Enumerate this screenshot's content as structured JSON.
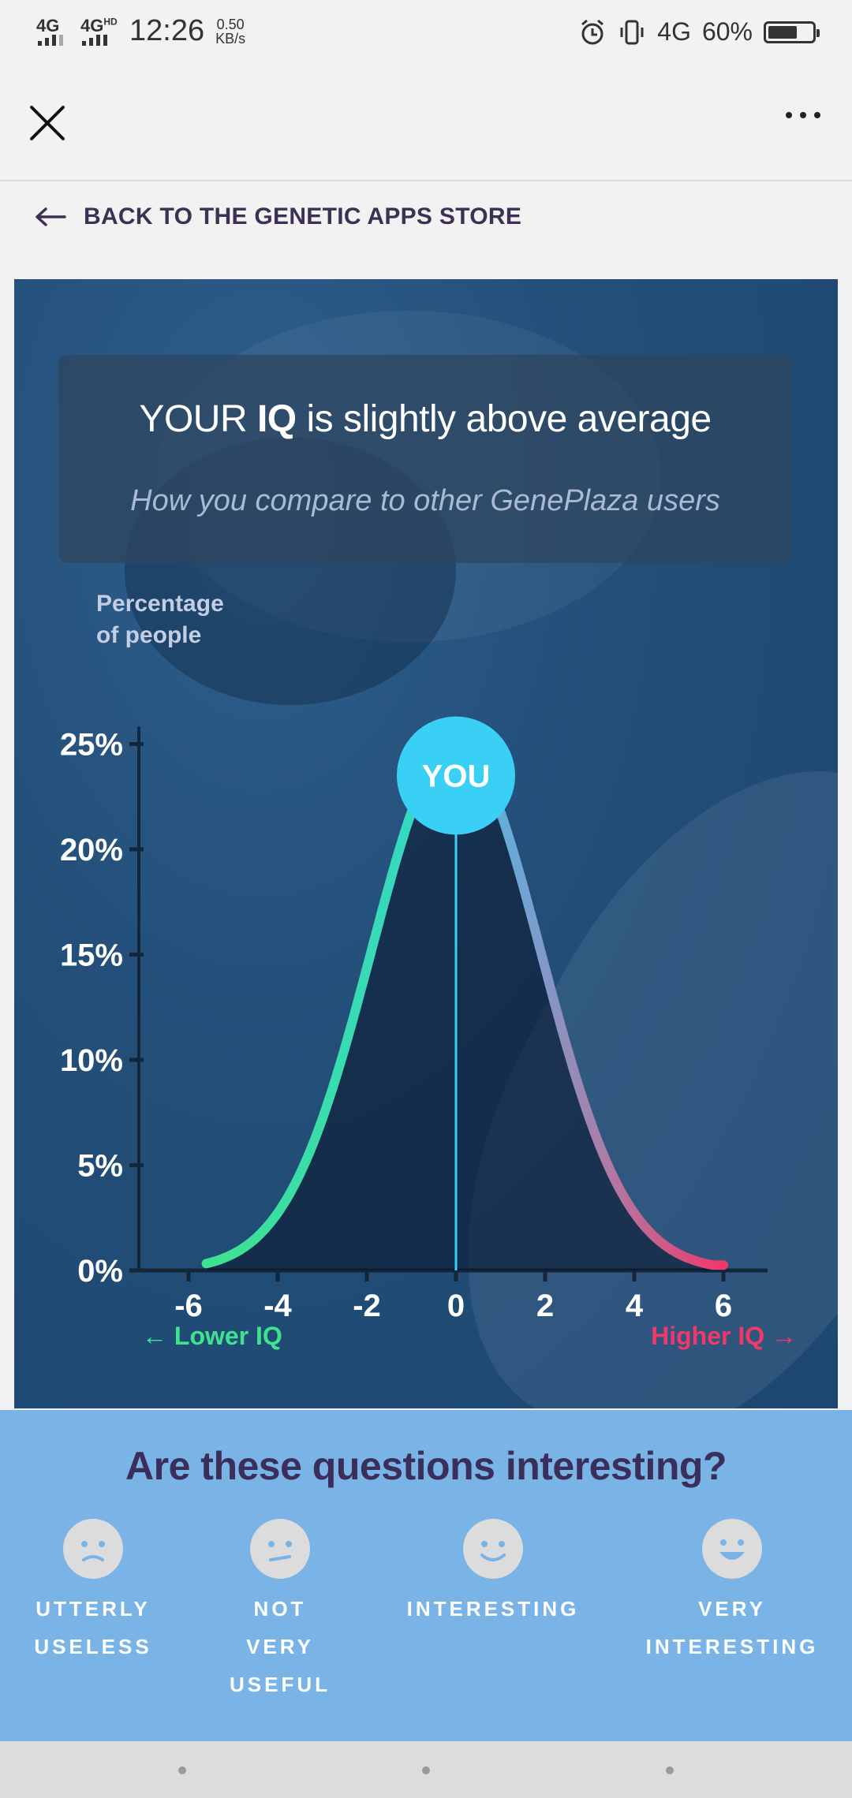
{
  "status_bar": {
    "signal1": "4G",
    "signal2": "4G",
    "signal2_sup": "HD",
    "time": "12:26",
    "speed_value": "0.50",
    "speed_unit": "KB/s",
    "network": "4G",
    "battery": "60%"
  },
  "app_bar": {
    "close_icon": "close-icon",
    "more_icon": "more-dots-icon"
  },
  "back_link": {
    "label": "BACK TO THE GENETIC APPS STORE"
  },
  "result": {
    "title_prefix": "YOUR ",
    "title_bold": "IQ",
    "title_suffix": " is slightly above average",
    "subtitle": "How you compare to other GenePlaza users"
  },
  "chart_data": {
    "type": "area",
    "ylabel_line1": "Percentage",
    "ylabel_line2": "of people",
    "ytick_labels": [
      "25%",
      "20%",
      "15%",
      "10%",
      "5%",
      "0%"
    ],
    "yticks": [
      25,
      20,
      15,
      10,
      5,
      0
    ],
    "xtick_labels": [
      "-6",
      "-4",
      "-2",
      "0",
      "2",
      "4",
      "6"
    ],
    "xticks": [
      -6,
      -4,
      -2,
      0,
      2,
      4,
      6
    ],
    "ylim": [
      0,
      25
    ],
    "xlim": [
      -7,
      7
    ],
    "curve": {
      "mean": 0,
      "peak_percent": 25,
      "sd": 1.9,
      "x_min": -5.6,
      "x_max": 6
    },
    "marker": {
      "x": 0,
      "label": "YOU"
    },
    "left_label": "Lower IQ",
    "right_label": "Higher IQ",
    "colors": {
      "low": "#3ee38e",
      "mid": "#35d6c8",
      "high": "#f0386a",
      "marker": "#3ad0f5"
    }
  },
  "feedback": {
    "question": "Are these questions interesting?",
    "options": [
      {
        "label": "UTTERLY\nUSELESS",
        "icon": "sad-face-icon"
      },
      {
        "label": "NOT\nVERY\nUSEFUL",
        "icon": "meh-face-icon"
      },
      {
        "label": "INTERESTING",
        "icon": "smile-face-icon"
      },
      {
        "label": "VERY\nINTERESTING",
        "icon": "grin-face-icon"
      }
    ]
  }
}
